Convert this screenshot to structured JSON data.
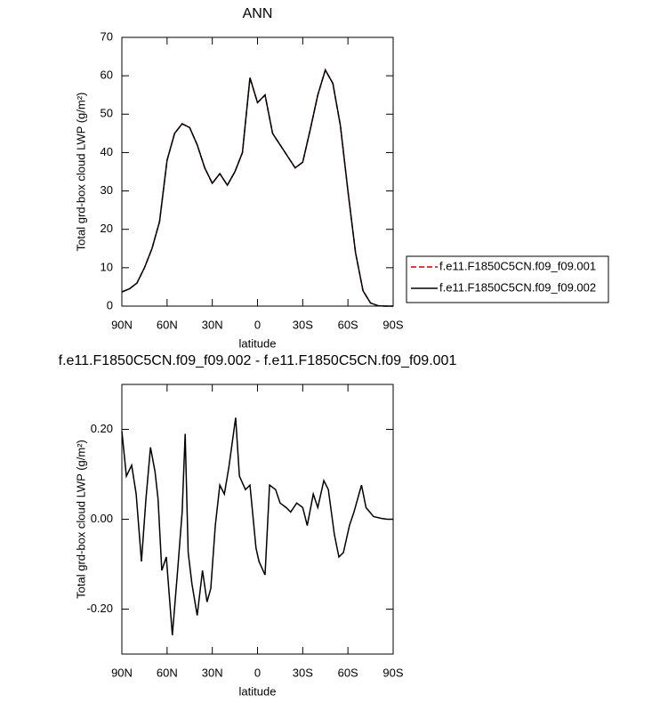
{
  "chart_data": [
    {
      "type": "line",
      "title": "ANN",
      "xlabel": "latitude",
      "ylabel": "Total grd-box cloud LWP (g/m²)",
      "x": [
        90,
        85,
        80,
        75,
        70,
        65,
        60,
        55,
        50,
        45,
        40,
        35,
        30,
        25,
        20,
        15,
        10,
        5,
        0,
        -5,
        -10,
        -15,
        -20,
        -25,
        -30,
        -35,
        -40,
        -45,
        -50,
        -55,
        -60,
        -65,
        -70,
        -75,
        -80,
        -85,
        -90
      ],
      "series": [
        {
          "name": "f.e11.F1850C5CN.f09_f09.001",
          "color": "#cc0000",
          "style": "dashed",
          "values": [
            3.7,
            4.5,
            6,
            10,
            15,
            22,
            38,
            45,
            47.5,
            46.5,
            42,
            36,
            32,
            34.5,
            31.5,
            35,
            40,
            59.5,
            53,
            55,
            45,
            42,
            39,
            36,
            37.5,
            46,
            55,
            61.5,
            58,
            47,
            30,
            14,
            4,
            0.8,
            0.1,
            0,
            0
          ]
        },
        {
          "name": "f.e11.F1850C5CN.f09_f09.002",
          "color": "#000000",
          "style": "solid",
          "values": [
            3.7,
            4.5,
            6,
            10,
            15,
            22,
            38,
            45,
            47.5,
            46.5,
            42,
            36,
            32,
            34.5,
            31.5,
            35,
            40,
            59.5,
            53,
            55,
            45,
            42,
            39,
            36,
            37.5,
            46,
            55,
            61.5,
            58,
            47,
            30,
            14,
            4,
            0.8,
            0.1,
            0,
            0
          ]
        }
      ],
      "xlim": [
        90,
        -90
      ],
      "xticks": [
        {
          "value": 90,
          "label": "90N"
        },
        {
          "value": 60,
          "label": "60N"
        },
        {
          "value": 30,
          "label": "30N"
        },
        0,
        {
          "value": -30,
          "label": "30S"
        },
        {
          "value": -60,
          "label": "60S"
        },
        {
          "value": -90,
          "label": "90S"
        }
      ],
      "ylim": [
        0,
        70
      ],
      "yticks": [
        0,
        10,
        20,
        30,
        40,
        50,
        60,
        70
      ],
      "legend": "outside-right"
    },
    {
      "type": "line",
      "title": "f.e11.F1850C5CN.f09_f09.002 - f.e11.F1850C5CN.f09_f09.001",
      "xlabel": "latitude",
      "ylabel": "Total grd-box cloud LWP (g/m²)",
      "x": [
        90,
        87,
        83.5,
        80.5,
        77,
        74,
        71,
        68,
        66,
        63.5,
        60.5,
        56.5,
        53,
        50,
        48,
        46,
        43.5,
        40,
        36.5,
        33.5,
        31,
        28,
        25,
        22,
        19,
        14.5,
        12,
        8,
        5,
        1,
        -1,
        -5,
        -8,
        -12,
        -15,
        -19,
        -22,
        -26,
        -30,
        -33,
        -37,
        -40,
        -44,
        -47,
        -51,
        -54,
        -57,
        -61,
        -64,
        -69,
        -72,
        -77,
        -82,
        -86,
        -90
      ],
      "values": [
        0.196,
        0.096,
        0.12,
        0.056,
        -0.094,
        0.046,
        0.16,
        0.106,
        0.046,
        -0.114,
        -0.084,
        -0.258,
        -0.114,
        0.016,
        0.19,
        -0.074,
        -0.144,
        -0.214,
        -0.114,
        -0.184,
        -0.154,
        -0.014,
        0.076,
        0.056,
        0.116,
        0.226,
        0.096,
        0.066,
        0.076,
        -0.064,
        -0.094,
        -0.124,
        0.076,
        0.066,
        0.036,
        0.026,
        0.016,
        0.036,
        0.026,
        -0.014,
        0.056,
        0.026,
        0.086,
        0.066,
        -0.034,
        -0.084,
        -0.074,
        -0.014,
        0.016,
        0.076,
        0.026,
        0.006,
        0.002,
        0,
        0
      ],
      "color": "#000000",
      "xlim": [
        90,
        -90
      ],
      "xticks": [
        {
          "value": 90,
          "label": "90N"
        },
        {
          "value": 60,
          "label": "60N"
        },
        {
          "value": 30,
          "label": "30N"
        },
        0,
        {
          "value": -30,
          "label": "30S"
        },
        {
          "value": -60,
          "label": "60S"
        },
        {
          "value": -90,
          "label": "90S"
        }
      ],
      "ylim": [
        -0.3,
        0.3
      ],
      "yticks": [
        {
          "value": -0.2,
          "label": "-0.20"
        },
        {
          "value": 0,
          "label": "0.00"
        },
        {
          "value": 0.2,
          "label": "0.20"
        }
      ]
    }
  ]
}
